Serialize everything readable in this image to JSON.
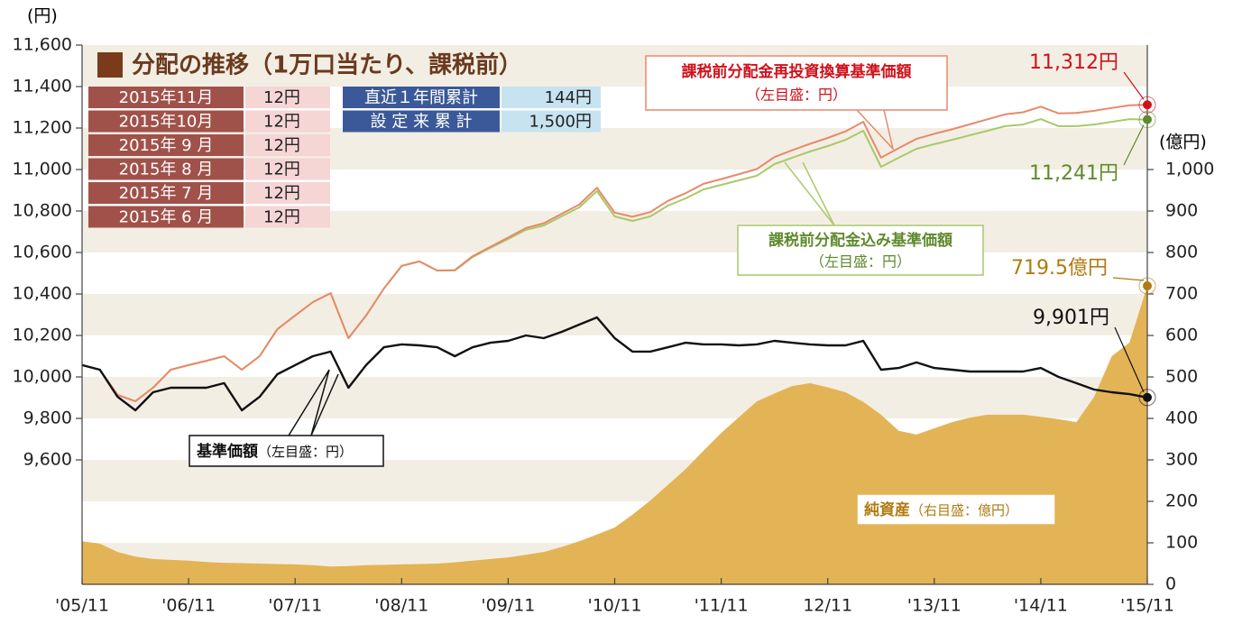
{
  "chart_data": {
    "type": "line",
    "left_unit": "(円)",
    "right_unit": "(億円)",
    "xlim": [
      0,
      120
    ],
    "xticks": [
      {
        "value": 0,
        "label": "'05/11"
      },
      {
        "value": 12,
        "label": "'06/11"
      },
      {
        "value": 24,
        "label": "'07/11"
      },
      {
        "value": 36,
        "label": "'08/11"
      },
      {
        "value": 48,
        "label": "'09/11"
      },
      {
        "value": 60,
        "label": "'10/11"
      },
      {
        "value": 72,
        "label": "'11/11"
      },
      {
        "value": 84,
        "label": "12/11"
      },
      {
        "value": 96,
        "label": "'13/11"
      },
      {
        "value": 108,
        "label": "'14/11"
      },
      {
        "value": 120,
        "label": "'15/11"
      }
    ],
    "ylim": [
      9000,
      11600
    ],
    "yticks": [
      {
        "value": 9600,
        "label": "9,600"
      },
      {
        "value": 9800,
        "label": "9,800"
      },
      {
        "value": 10000,
        "label": "10,000"
      },
      {
        "value": 10200,
        "label": "10,200"
      },
      {
        "value": 10400,
        "label": "10,400"
      },
      {
        "value": 10600,
        "label": "10,600"
      },
      {
        "value": 10800,
        "label": "10,800"
      },
      {
        "value": 11000,
        "label": "11,000"
      },
      {
        "value": 11200,
        "label": "11,200"
      },
      {
        "value": 11400,
        "label": "11,400"
      },
      {
        "value": 11600,
        "label": "11,600"
      }
    ],
    "y2lim": [
      0,
      1300
    ],
    "y2ticks": [
      0,
      100,
      200,
      300,
      400,
      500,
      600,
      700,
      800,
      900,
      {
        "value": 1000,
        "label": "1,000"
      }
    ],
    "x": [
      0,
      2,
      4,
      6,
      8,
      10,
      12,
      14,
      16,
      18,
      20,
      22,
      24,
      26,
      28,
      30,
      32,
      34,
      36,
      38,
      40,
      42,
      44,
      46,
      48,
      50,
      52,
      54,
      56,
      58,
      60,
      62,
      64,
      66,
      68,
      70,
      72,
      74,
      76,
      78,
      80,
      82,
      84,
      86,
      88,
      90,
      92,
      94,
      96,
      98,
      100,
      102,
      104,
      106,
      108,
      110,
      112,
      114,
      116,
      118,
      120
    ],
    "series": [
      {
        "name": "純資産",
        "note": "（右目盛：億円）",
        "color": "#e3b456",
        "text_color": "#b07a10",
        "axis": "y2",
        "end_label": "719.5億円",
        "values": [
          104,
          98,
          78,
          67,
          61,
          59,
          57,
          54,
          52,
          51,
          50,
          49,
          48,
          46,
          43,
          44,
          46,
          47,
          48,
          49,
          50,
          53,
          57,
          61,
          65,
          71,
          78,
          90,
          104,
          120,
          137,
          168,
          202,
          240,
          278,
          322,
          365,
          403,
          441,
          460,
          478,
          485,
          475,
          463,
          440,
          409,
          370,
          361,
          376,
          391,
          402,
          409,
          409,
          409,
          404,
          398,
          391,
          452,
          550,
          583,
          719.5
        ]
      },
      {
        "name": "課税前分配金込み基準価額",
        "note": "（左目盛：円）",
        "color": "#a9c96a",
        "text_color": "#5f8a2e",
        "end_label": "11,241円",
        "values": [
          10057,
          10035,
          9913,
          9883,
          9948,
          10035,
          10057,
          10078,
          10100,
          10035,
          10100,
          10230,
          10296,
          10361,
          10404,
          10187,
          10296,
          10426,
          10535,
          10557,
          10513,
          10513,
          10578,
          10622,
          10665,
          10709,
          10730,
          10774,
          10817,
          10896,
          10774,
          10752,
          10774,
          10826,
          10861,
          10904,
          10926,
          10948,
          10970,
          11026,
          11057,
          11087,
          11113,
          11143,
          11187,
          11013,
          11057,
          11100,
          11122,
          11143,
          11165,
          11187,
          11209,
          11217,
          11243,
          11209,
          11209,
          11217,
          11230,
          11243,
          11241
        ]
      },
      {
        "name": "課税前分配金再投資換算基準価額",
        "note": "（左目盛：円）",
        "color": "#e8896a",
        "text_color": "#d0111b",
        "end_label": "11,312円",
        "values": [
          10057,
          10035,
          9913,
          9883,
          9948,
          10035,
          10057,
          10078,
          10100,
          10035,
          10100,
          10230,
          10296,
          10361,
          10404,
          10187,
          10296,
          10426,
          10535,
          10557,
          10513,
          10515,
          10582,
          10627,
          10672,
          10718,
          10741,
          10786,
          10831,
          10912,
          10792,
          10772,
          10795,
          10849,
          10886,
          10931,
          10954,
          10978,
          11002,
          11060,
          11093,
          11124,
          11152,
          11184,
          11230,
          11057,
          11103,
          11148,
          11172,
          11194,
          11218,
          11242,
          11266,
          11276,
          11303,
          11271,
          11273,
          11283,
          11297,
          11310,
          11312
        ]
      },
      {
        "name": "基準価額",
        "note": "（左目盛：円）",
        "color": "#111111",
        "text_color": "#111111",
        "end_label": "9,901円",
        "values": [
          10057,
          10035,
          9904,
          9839,
          9926,
          9948,
          9948,
          9948,
          9970,
          9839,
          9904,
          10013,
          10057,
          10100,
          10122,
          9948,
          10057,
          10143,
          10157,
          10152,
          10143,
          10100,
          10143,
          10165,
          10174,
          10200,
          10187,
          10217,
          10252,
          10287,
          10187,
          10122,
          10122,
          10143,
          10165,
          10157,
          10157,
          10152,
          10157,
          10174,
          10165,
          10157,
          10152,
          10152,
          10174,
          10035,
          10043,
          10070,
          10043,
          10035,
          10026,
          10026,
          10026,
          10026,
          10043,
          10000,
          9970,
          9939,
          9926,
          9917,
          9901
        ]
      }
    ]
  },
  "distribution": {
    "title": "分配の推移（1万口当たり、課税前）",
    "rows": [
      [
        "2015年11月",
        "12円"
      ],
      [
        "2015年10月",
        "12円"
      ],
      [
        "2015年 9 月",
        "12円"
      ],
      [
        "2015年 8 月",
        "12円"
      ],
      [
        "2015年 7 月",
        "12円"
      ],
      [
        "2015年 6 月",
        "12円"
      ]
    ],
    "totals": [
      [
        "直近１年間累計",
        "144円"
      ],
      [
        "設 定 来 累 計",
        "1,500円"
      ]
    ]
  }
}
